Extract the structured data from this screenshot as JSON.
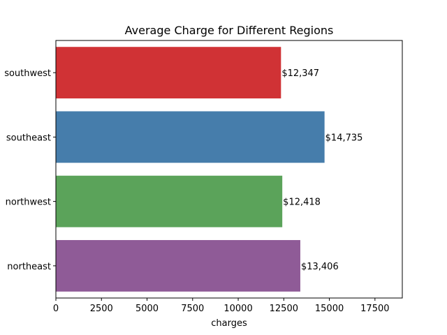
{
  "chart_data": {
    "type": "bar",
    "orientation": "horizontal",
    "title": "Average Charge for Different Regions",
    "xlabel": "charges",
    "ylabel": "",
    "xlim": [
      0,
      19000
    ],
    "xticks": [
      0,
      2500,
      5000,
      7500,
      10000,
      12500,
      15000,
      17500
    ],
    "categories": [
      "southwest",
      "southeast",
      "northwest",
      "northeast"
    ],
    "values": [
      12347,
      14735,
      12418,
      13406
    ],
    "data_labels": [
      "$12,347",
      "$14,735",
      "$12,418",
      "$13,406"
    ],
    "colors": [
      "#d03235",
      "#467dab",
      "#5ba35a",
      "#8f5b97"
    ],
    "grid": false,
    "legend": "none"
  }
}
